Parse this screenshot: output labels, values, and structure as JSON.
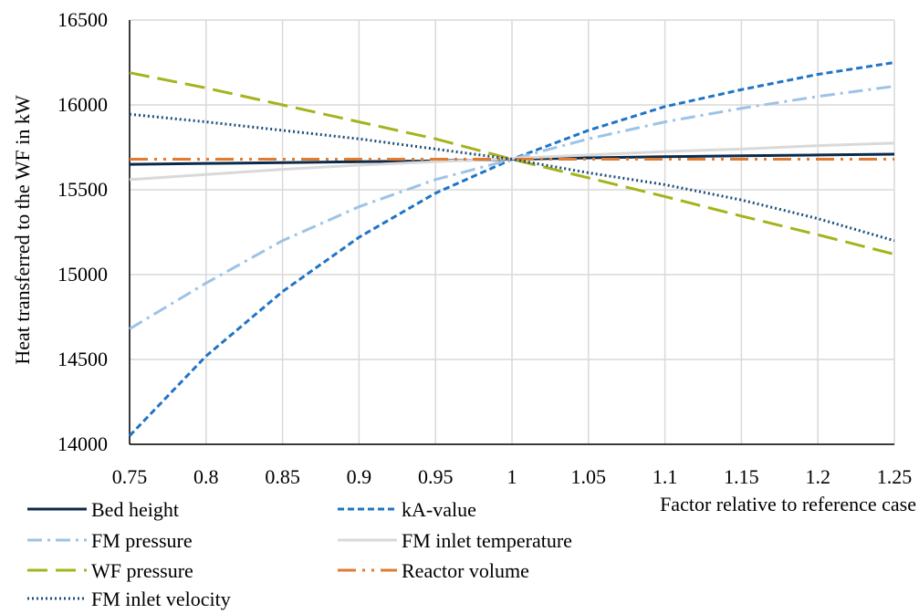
{
  "chart_data": {
    "type": "line",
    "title": "",
    "xlabel": "Factor relative to reference case",
    "ylabel": "Heat transferred to the WF in kW",
    "x": [
      0.75,
      0.8,
      0.85,
      0.9,
      0.95,
      1,
      1.05,
      1.1,
      1.15,
      1.2,
      1.25
    ],
    "xticks": [
      "0.75",
      "0.8",
      "0.85",
      "0.9",
      "0.95",
      "1",
      "1.05",
      "1.1",
      "1.15",
      "1.2",
      "1.25"
    ],
    "yticks": [
      "14000",
      "14500",
      "15000",
      "15500",
      "16000",
      "16500"
    ],
    "xlim": [
      0.75,
      1.25
    ],
    "ylim": [
      14000,
      16500
    ],
    "grid": "vertical and horizontal",
    "legend_position": "bottom",
    "series": [
      {
        "name": "Bed height",
        "color": "#0b2a4a",
        "dash": "solid",
        "width": 3,
        "values": [
          15650,
          15655,
          15660,
          15665,
          15670,
          15680,
          15688,
          15695,
          15700,
          15705,
          15710
        ]
      },
      {
        "name": "kA-value",
        "color": "#1f74c6",
        "dash": "dashed-short",
        "width": 3,
        "values": [
          14050,
          14520,
          14900,
          15220,
          15480,
          15680,
          15850,
          15990,
          16090,
          16180,
          16250
        ]
      },
      {
        "name": "FM pressure",
        "color": "#9dc3e6",
        "dash": "dash-dot",
        "width": 3,
        "values": [
          14680,
          14950,
          15200,
          15400,
          15560,
          15680,
          15800,
          15900,
          15980,
          16050,
          16110
        ]
      },
      {
        "name": "FM inlet temperature",
        "color": "#d9d9d9",
        "dash": "solid",
        "width": 3,
        "values": [
          15560,
          15590,
          15620,
          15645,
          15665,
          15685,
          15705,
          15725,
          15740,
          15760,
          15775
        ]
      },
      {
        "name": "WF pressure",
        "color": "#a5b31c",
        "dash": "long-dash",
        "width": 3,
        "values": [
          16190,
          16100,
          16000,
          15900,
          15800,
          15680,
          15570,
          15460,
          15345,
          15235,
          15120
        ]
      },
      {
        "name": "Reactor volume",
        "color": "#e07b30",
        "dash": "long-dash-dot-dot",
        "width": 3,
        "values": [
          15680,
          15680,
          15680,
          15680,
          15680,
          15680,
          15680,
          15680,
          15680,
          15680,
          15680
        ]
      },
      {
        "name": "FM inlet velocity",
        "color": "#1f4e79",
        "dash": "dotted",
        "width": 3,
        "values": [
          15945,
          15900,
          15850,
          15800,
          15740,
          15680,
          15600,
          15530,
          15440,
          15330,
          15200
        ]
      }
    ]
  }
}
